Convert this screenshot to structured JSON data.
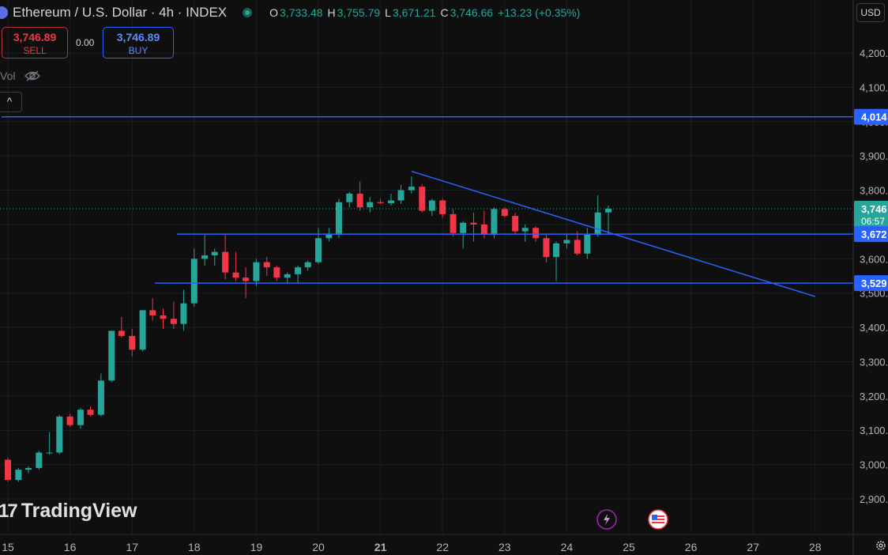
{
  "header": {
    "symbol_title": "Ethereum / U.S. Dollar · 4h · INDEX",
    "ohlc": {
      "open_label": "O",
      "open": "3,733.48",
      "high_label": "H",
      "high": "3,755.79",
      "low_label": "L",
      "low": "3,671.21",
      "close_label": "C",
      "close": "3,746.66",
      "change": "+13.23 (+0.35%)"
    }
  },
  "trade": {
    "sell_price": "3,746.89",
    "sell_label": "SELL",
    "spread": "0.00",
    "buy_price": "3,746.89",
    "buy_label": "BUY"
  },
  "volume_label": "Vol",
  "currency_label": "USD",
  "collapse_label": "^",
  "logo_text": "TradingView",
  "logo_mark": "17",
  "colors": {
    "up": "#26a69a",
    "down": "#f23645",
    "line": "#2962ff",
    "bg": "#0f0f0f"
  },
  "chart_data": {
    "type": "candlestick",
    "interval": "4h",
    "x_labels": [
      "15",
      "16",
      "17",
      "18",
      "19",
      "20",
      "21",
      "22",
      "23",
      "24",
      "25",
      "26",
      "27",
      "28"
    ],
    "y_ticks": [
      "2,900.00",
      "3,000.00",
      "3,100.00",
      "3,200.00",
      "3,300.00",
      "3,400.00",
      "3,500.00",
      "3,600.00",
      "3,700.00",
      "3,800.00",
      "3,900.00",
      "4,000.00",
      "4,100.00",
      "4,200.00"
    ],
    "y_tick_values": [
      2900,
      3000,
      3100,
      3200,
      3300,
      3400,
      3500,
      3600,
      3700,
      3800,
      3900,
      4000,
      4100,
      4200
    ],
    "ylim": [
      2845,
      4272
    ],
    "xlim": [
      15.0,
      29.0
    ],
    "candles": [
      {
        "t": 15.0,
        "o": 3014,
        "h": 3020,
        "l": 2950,
        "c": 2955
      },
      {
        "t": 15.17,
        "o": 2955,
        "h": 2990,
        "l": 2950,
        "c": 2985
      },
      {
        "t": 15.33,
        "o": 2985,
        "h": 2995,
        "l": 2975,
        "c": 2990
      },
      {
        "t": 15.5,
        "o": 2990,
        "h": 3040,
        "l": 2985,
        "c": 3035
      },
      {
        "t": 15.67,
        "o": 3035,
        "h": 3095,
        "l": 3030,
        "c": 3035
      },
      {
        "t": 15.83,
        "o": 3035,
        "h": 3145,
        "l": 3030,
        "c": 3140
      },
      {
        "t": 16.0,
        "o": 3140,
        "h": 3148,
        "l": 3110,
        "c": 3115
      },
      {
        "t": 16.17,
        "o": 3115,
        "h": 3165,
        "l": 3105,
        "c": 3160
      },
      {
        "t": 16.33,
        "o": 3160,
        "h": 3170,
        "l": 3140,
        "c": 3145
      },
      {
        "t": 16.5,
        "o": 3145,
        "h": 3265,
        "l": 3140,
        "c": 3245
      },
      {
        "t": 16.67,
        "o": 3245,
        "h": 3390,
        "l": 3240,
        "c": 3390
      },
      {
        "t": 16.83,
        "o": 3390,
        "h": 3430,
        "l": 3370,
        "c": 3375
      },
      {
        "t": 17.0,
        "o": 3375,
        "h": 3395,
        "l": 3315,
        "c": 3335
      },
      {
        "t": 17.17,
        "o": 3335,
        "h": 3450,
        "l": 3330,
        "c": 3450
      },
      {
        "t": 17.33,
        "o": 3450,
        "h": 3485,
        "l": 3420,
        "c": 3435
      },
      {
        "t": 17.5,
        "o": 3435,
        "h": 3455,
        "l": 3395,
        "c": 3425
      },
      {
        "t": 17.67,
        "o": 3425,
        "h": 3475,
        "l": 3395,
        "c": 3410
      },
      {
        "t": 17.83,
        "o": 3410,
        "h": 3510,
        "l": 3390,
        "c": 3470
      },
      {
        "t": 18.0,
        "o": 3470,
        "h": 3630,
        "l": 3460,
        "c": 3600
      },
      {
        "t": 18.17,
        "o": 3600,
        "h": 3670,
        "l": 3580,
        "c": 3610
      },
      {
        "t": 18.33,
        "o": 3610,
        "h": 3630,
        "l": 3580,
        "c": 3620
      },
      {
        "t": 18.5,
        "o": 3620,
        "h": 3670,
        "l": 3540,
        "c": 3560
      },
      {
        "t": 18.67,
        "o": 3560,
        "h": 3620,
        "l": 3535,
        "c": 3545
      },
      {
        "t": 18.83,
        "o": 3545,
        "h": 3575,
        "l": 3485,
        "c": 3535
      },
      {
        "t": 19.0,
        "o": 3535,
        "h": 3600,
        "l": 3520,
        "c": 3590
      },
      {
        "t": 19.17,
        "o": 3590,
        "h": 3605,
        "l": 3550,
        "c": 3575
      },
      {
        "t": 19.33,
        "o": 3575,
        "h": 3580,
        "l": 3535,
        "c": 3545
      },
      {
        "t": 19.5,
        "o": 3545,
        "h": 3560,
        "l": 3530,
        "c": 3555
      },
      {
        "t": 19.67,
        "o": 3555,
        "h": 3580,
        "l": 3530,
        "c": 3575
      },
      {
        "t": 19.83,
        "o": 3575,
        "h": 3595,
        "l": 3565,
        "c": 3590
      },
      {
        "t": 20.0,
        "o": 3590,
        "h": 3690,
        "l": 3585,
        "c": 3660
      },
      {
        "t": 20.17,
        "o": 3660,
        "h": 3690,
        "l": 3650,
        "c": 3670
      },
      {
        "t": 20.33,
        "o": 3670,
        "h": 3775,
        "l": 3660,
        "c": 3765
      },
      {
        "t": 20.5,
        "o": 3765,
        "h": 3795,
        "l": 3750,
        "c": 3790
      },
      {
        "t": 20.67,
        "o": 3790,
        "h": 3825,
        "l": 3740,
        "c": 3750
      },
      {
        "t": 20.83,
        "o": 3750,
        "h": 3780,
        "l": 3735,
        "c": 3765
      },
      {
        "t": 21.0,
        "o": 3765,
        "h": 3775,
        "l": 3760,
        "c": 3762
      },
      {
        "t": 21.17,
        "o": 3762,
        "h": 3790,
        "l": 3755,
        "c": 3770
      },
      {
        "t": 21.33,
        "o": 3770,
        "h": 3815,
        "l": 3760,
        "c": 3800
      },
      {
        "t": 21.5,
        "o": 3800,
        "h": 3840,
        "l": 3790,
        "c": 3810
      },
      {
        "t": 21.67,
        "o": 3810,
        "h": 3818,
        "l": 3735,
        "c": 3740
      },
      {
        "t": 21.83,
        "o": 3740,
        "h": 3775,
        "l": 3725,
        "c": 3770
      },
      {
        "t": 22.0,
        "o": 3770,
        "h": 3775,
        "l": 3720,
        "c": 3730
      },
      {
        "t": 22.17,
        "o": 3730,
        "h": 3745,
        "l": 3665,
        "c": 3675
      },
      {
        "t": 22.33,
        "o": 3675,
        "h": 3710,
        "l": 3630,
        "c": 3705
      },
      {
        "t": 22.5,
        "o": 3705,
        "h": 3735,
        "l": 3650,
        "c": 3700
      },
      {
        "t": 22.67,
        "o": 3700,
        "h": 3740,
        "l": 3660,
        "c": 3670
      },
      {
        "t": 22.83,
        "o": 3670,
        "h": 3750,
        "l": 3660,
        "c": 3745
      },
      {
        "t": 23.0,
        "o": 3745,
        "h": 3750,
        "l": 3720,
        "c": 3725
      },
      {
        "t": 23.17,
        "o": 3725,
        "h": 3735,
        "l": 3670,
        "c": 3680
      },
      {
        "t": 23.33,
        "o": 3680,
        "h": 3700,
        "l": 3650,
        "c": 3690
      },
      {
        "t": 23.5,
        "o": 3690,
        "h": 3695,
        "l": 3650,
        "c": 3660
      },
      {
        "t": 23.67,
        "o": 3660,
        "h": 3670,
        "l": 3590,
        "c": 3605
      },
      {
        "t": 23.83,
        "o": 3605,
        "h": 3650,
        "l": 3535,
        "c": 3645
      },
      {
        "t": 24.0,
        "o": 3645,
        "h": 3670,
        "l": 3630,
        "c": 3655
      },
      {
        "t": 24.17,
        "o": 3655,
        "h": 3680,
        "l": 3610,
        "c": 3615
      },
      {
        "t": 24.33,
        "o": 3615,
        "h": 3690,
        "l": 3600,
        "c": 3670
      },
      {
        "t": 24.5,
        "o": 3670,
        "h": 3785,
        "l": 3665,
        "c": 3735
      },
      {
        "t": 24.67,
        "o": 3735,
        "h": 3755,
        "l": 3671,
        "c": 3746
      }
    ],
    "lines": [
      {
        "kind": "horizontal",
        "y": 4014,
        "x_from": 14.9,
        "x_to": 29.0
      },
      {
        "kind": "horizontal",
        "y": 3672,
        "x_from": 17.72,
        "x_to": 29.0
      },
      {
        "kind": "horizontal",
        "y": 3529,
        "x_from": 17.37,
        "x_to": 29.0
      },
      {
        "kind": "trend",
        "x1": 21.5,
        "y1": 3855,
        "x2": 28.0,
        "y2": 3490
      }
    ],
    "price_labels": [
      {
        "y": 4014,
        "text": "4,014",
        "color": "#2962ff"
      },
      {
        "y": 3746,
        "text": "3,746",
        "sub": "06:57",
        "color": "#26a69a"
      },
      {
        "y": 3672,
        "text": "3,672",
        "color": "#2962ff"
      },
      {
        "y": 3529,
        "text": "3,529",
        "color": "#2962ff"
      }
    ]
  }
}
